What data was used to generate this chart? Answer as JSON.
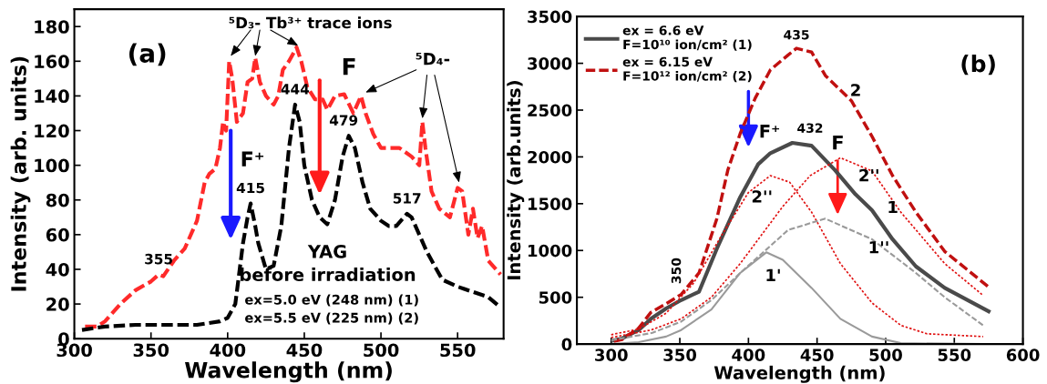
{
  "chart_data": [
    {
      "type": "line",
      "xlabel": "Wavelength (nm)",
      "ylabel": "Intensity (arb. units)",
      "xlim": [
        300,
        580
      ],
      "ylim": [
        0,
        190
      ],
      "xticks": [
        300,
        350,
        400,
        450,
        500,
        550
      ],
      "yticks": [
        0,
        20,
        40,
        60,
        80,
        100,
        120,
        140,
        160,
        180
      ],
      "grid": false,
      "legend": false,
      "series": [
        {
          "color": "#ff2a2a",
          "line_style": "dashed",
          "x": [
            307,
            315,
            320,
            330,
            340,
            350,
            355,
            358,
            365,
            372,
            380,
            385,
            388,
            392,
            395,
            397,
            399,
            401,
            403,
            406,
            410,
            413,
            416,
            418,
            421,
            425,
            430,
            433,
            436,
            440,
            445,
            448,
            452,
            457,
            462,
            465,
            470,
            476,
            482,
            487,
            490,
            495,
            500,
            505,
            512,
            520,
            525,
            527,
            529,
            533,
            538,
            545,
            550,
            553,
            557,
            560,
            563,
            566,
            570,
            578
          ],
          "values": [
            7,
            7,
            10,
            20,
            28,
            33,
            37,
            36,
            45,
            52,
            68,
            90,
            95,
            98,
            110,
            125,
            120,
            160,
            150,
            125,
            130,
            148,
            150,
            162,
            148,
            140,
            135,
            140,
            155,
            160,
            168,
            160,
            145,
            138,
            138,
            132,
            140,
            141,
            130,
            140,
            130,
            118,
            110,
            110,
            110,
            105,
            100,
            125,
            110,
            85,
            75,
            70,
            87,
            85,
            60,
            75,
            58,
            65,
            45,
            37
          ]
        },
        {
          "color": "#000000",
          "line_style": "dashed",
          "x": [
            305,
            320,
            340,
            360,
            380,
            395,
            400,
            405,
            410,
            413,
            415,
            418,
            420,
            425,
            430,
            435,
            440,
            444,
            447,
            450,
            455,
            460,
            465,
            470,
            475,
            479,
            483,
            488,
            493,
            500,
            505,
            510,
            517,
            520,
            525,
            530,
            540,
            550,
            560,
            570,
            578
          ],
          "values": [
            5,
            7,
            8,
            8,
            8,
            10,
            12,
            20,
            55,
            70,
            78,
            65,
            55,
            40,
            42,
            65,
            110,
            135,
            125,
            100,
            80,
            70,
            66,
            80,
            105,
            117,
            110,
            90,
            75,
            68,
            65,
            65,
            72,
            70,
            60,
            50,
            34,
            30,
            27,
            24,
            18
          ]
        }
      ],
      "annotations": [
        "(a)",
        "⁵D₃- Tb³⁺ trace ions",
        {
          "text": "⁵D₄-",
          "x": 527,
          "y": 125
        },
        "F",
        "F⁺",
        {
          "text": "444",
          "x": 444,
          "y": 135
        },
        {
          "text": "415",
          "x": 415,
          "y": 78
        },
        {
          "text": "479",
          "x": 479,
          "y": 117
        },
        {
          "text": "517",
          "x": 517,
          "y": 72
        },
        {
          "text": "355",
          "x": 355,
          "y": 37
        },
        "YAG",
        "before irradiation",
        "ex=5.0 eV (248 nm) (1)",
        "ex=5.5 eV (225 nm) (2)"
      ]
    },
    {
      "type": "line",
      "xlabel": "Wavelength (nm)",
      "ylabel": "Intensity (arb.units)",
      "xlim": [
        275,
        600
      ],
      "ylim": [
        0,
        3500
      ],
      "xticks": [
        300,
        350,
        400,
        450,
        500,
        550,
        600
      ],
      "yticks": [
        0,
        500,
        1000,
        1500,
        2000,
        2500,
        3000,
        3500
      ],
      "grid": false,
      "legend": "top left",
      "series": [
        {
          "name": "ex = 6.6 eV\nF=10¹⁰ ion/cm² (1)",
          "color": "#4a4a4a",
          "line_style": "solid",
          "x": [
            302,
            308,
            320,
            329,
            340,
            351,
            364,
            377,
            394,
            407,
            416,
            432,
            446,
            463,
            478,
            490,
            505,
            522,
            543,
            575
          ],
          "values": [
            40,
            60,
            150,
            270,
            380,
            470,
            560,
            1020,
            1570,
            1920,
            2040,
            2150,
            2120,
            1860,
            1600,
            1430,
            1120,
            830,
            600,
            350
          ]
        },
        {
          "name": "ex = 6.15 eV\nF=10¹² ion/cm² (2)",
          "color": "#c01010",
          "line_style": "dashed",
          "x": [
            302,
            308,
            320,
            329,
            340,
            351,
            364,
            377,
            385,
            394,
            405,
            416,
            429,
            435,
            446,
            456,
            475,
            490,
            505,
            522,
            543,
            575
          ],
          "values": [
            30,
            50,
            170,
            340,
            430,
            530,
            760,
            1340,
            1860,
            2250,
            2630,
            2930,
            3090,
            3160,
            3120,
            2870,
            2600,
            2220,
            1800,
            1410,
            990,
            610
          ]
        },
        {
          "color": "#e01010",
          "line_style": "dotted",
          "x": [
            300,
            320,
            340,
            360,
            380,
            400,
            416,
            430,
            446,
            467,
            490,
            511,
            530,
            571
          ],
          "values": [
            100,
            160,
            330,
            650,
            1150,
            1620,
            1800,
            1730,
            1410,
            860,
            440,
            200,
            110,
            80
          ]
        },
        {
          "color": "#e01010",
          "line_style": "dotted",
          "x": [
            300,
            329,
            351,
            373,
            394,
            425,
            445,
            467,
            490,
            511,
            543,
            571
          ],
          "values": [
            70,
            150,
            270,
            500,
            860,
            1470,
            1800,
            1990,
            1850,
            1410,
            860,
            520
          ]
        },
        {
          "color": "#9a9a9a",
          "line_style": "solid",
          "x": [
            300,
            320,
            340,
            351,
            373,
            394,
            413,
            425,
            446,
            467,
            490,
            511,
            571
          ],
          "values": [
            0,
            20,
            80,
            150,
            370,
            760,
            980,
            900,
            600,
            270,
            80,
            10,
            0
          ]
        },
        {
          "color": "#9a9a9a",
          "line_style": "dashed",
          "x": [
            300,
            330,
            351,
            373,
            394,
            429,
            456,
            490,
            522,
            543,
            571
          ],
          "values": [
            40,
            120,
            240,
            470,
            760,
            1220,
            1340,
            1120,
            760,
            500,
            200
          ]
        }
      ],
      "annotations": [
        "(b)",
        {
          "text": "435",
          "x": 435,
          "y": 3160
        },
        {
          "text": "432",
          "x": 432,
          "y": 2150
        },
        {
          "text": "350",
          "x": 350,
          "y": 534
        },
        "F⁺",
        "F",
        "2",
        "1",
        "2''",
        "2''",
        "1'",
        "1''"
      ]
    }
  ]
}
